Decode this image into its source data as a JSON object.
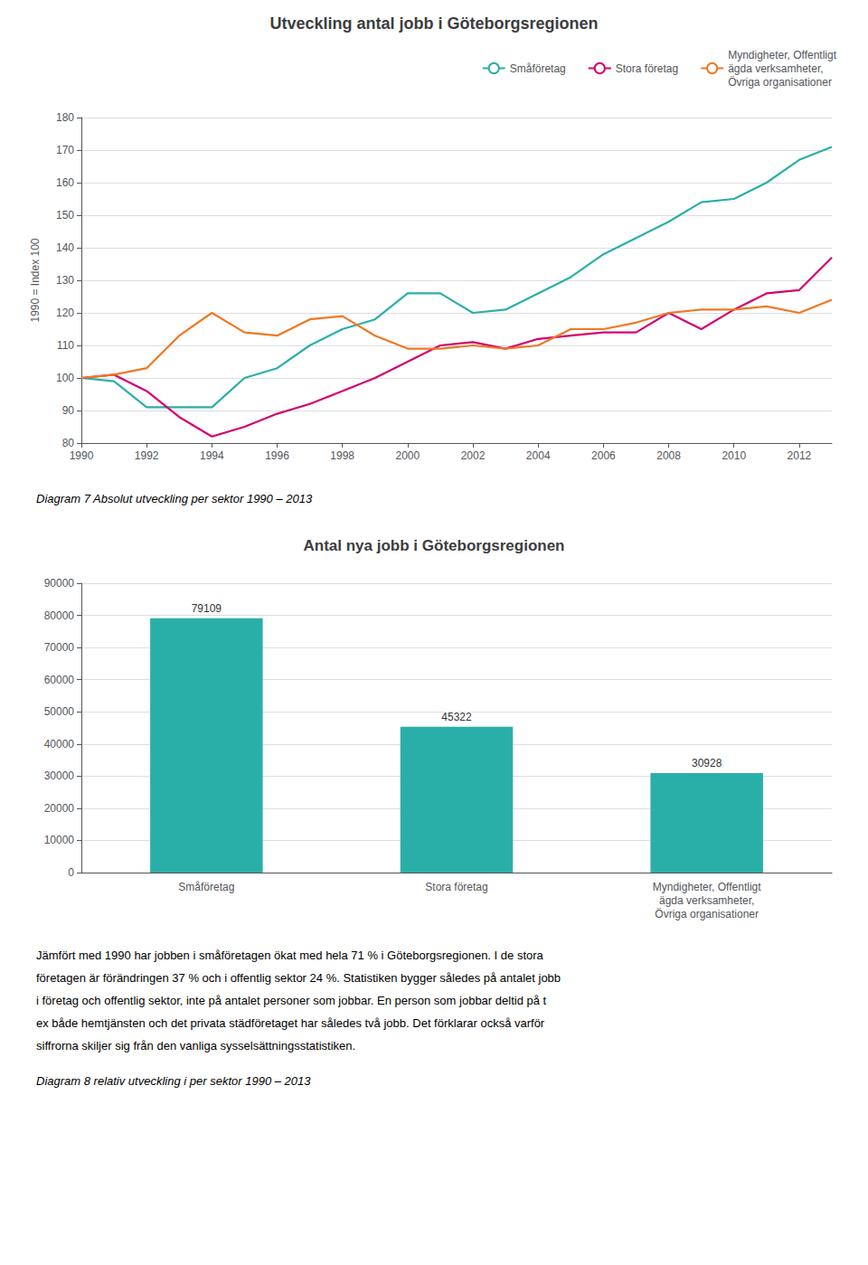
{
  "chart_data": [
    {
      "type": "line",
      "title": "Utveckling antal jobb i Göteborgsregionen",
      "ylabel": "1990 = Index 100",
      "x": [
        1990,
        1991,
        1992,
        1993,
        1994,
        1995,
        1996,
        1997,
        1998,
        1999,
        2000,
        2001,
        2002,
        2003,
        2004,
        2005,
        2006,
        2007,
        2008,
        2009,
        2010,
        2011,
        2012,
        2013
      ],
      "series": [
        {
          "name": "Småföretag",
          "color": "#2aafa8",
          "values": [
            100,
            99,
            91,
            91,
            91,
            100,
            103,
            110,
            115,
            118,
            126,
            126,
            120,
            121,
            126,
            131,
            138,
            143,
            148,
            154,
            155,
            160,
            167,
            171
          ]
        },
        {
          "name": "Stora företag",
          "color": "#d4006e",
          "values": [
            100,
            101,
            96,
            88,
            82,
            85,
            89,
            92,
            96,
            100,
            105,
            110,
            111,
            109,
            112,
            113,
            114,
            114,
            120,
            115,
            121,
            126,
            127,
            137
          ]
        },
        {
          "name": "Myndigheter, Offentligt\nägda verksamheter,\nÖvriga organisationer",
          "color": "#f07820",
          "values": [
            100,
            101,
            103,
            113,
            120,
            114,
            113,
            118,
            119,
            113,
            109,
            109,
            110,
            109,
            110,
            115,
            115,
            117,
            120,
            121,
            121,
            122,
            120,
            124
          ]
        }
      ],
      "xlim": [
        1990,
        2013
      ],
      "xticks": [
        1990,
        1992,
        1994,
        1996,
        1998,
        2000,
        2002,
        2004,
        2006,
        2008,
        2010,
        2012
      ],
      "ylim": [
        80,
        180
      ],
      "yticks": [
        80,
        90,
        100,
        110,
        120,
        130,
        140,
        150,
        160,
        170,
        180
      ],
      "grid": true,
      "legend": "upper right",
      "annotations": [
        "Diagram 7 Absolut utveckling per sektor 1990 – 2013"
      ]
    },
    {
      "type": "bar",
      "title": "Antal nya jobb i Göteborgsregionen",
      "categories": [
        "Småföretag",
        "Stora företag",
        "Myndigheter, Offentligt\nägda verksamheter,\nÖvriga organisationer"
      ],
      "values": [
        79109,
        45322,
        30928
      ],
      "color": "#2aafa8",
      "ylim": [
        0,
        90000
      ],
      "yticks": [
        0,
        10000,
        20000,
        30000,
        40000,
        50000,
        60000,
        70000,
        80000,
        90000
      ],
      "grid": true,
      "data_labels": true,
      "annotations": [
        "Jämfört med 1990 har jobben i småföretagen ökat med hela 71 % i Göteborgsregionen. I de stora",
        "företagen är förändringen 37 % och i offentlig sektor 24 %. Statistiken bygger således på antalet jobb",
        "i företag och offentlig sektor, inte på antalet personer som jobbar. En person som jobbar deltid på t",
        "ex både hemtjänsten och det privata städföretaget har således två jobb. Det förklarar också varför",
        "siffrorna skiljer sig från den vanliga sysselsättningsstatistiken.",
        "Diagram 8 relativ utveckling i per sektor 1990 – 2013"
      ]
    }
  ]
}
